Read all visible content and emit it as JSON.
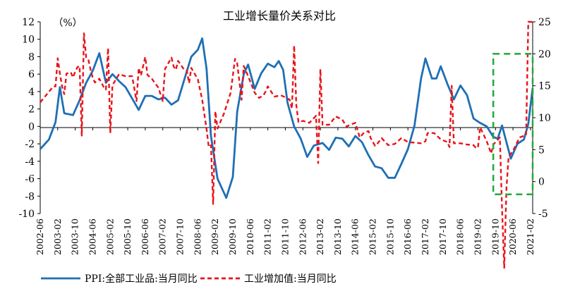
{
  "chart_data": {
    "type": "line",
    "title": "工业增长量价关系对比",
    "left_axis_unit": "（%）",
    "right_axis_unit": "",
    "y_left": {
      "min": -10,
      "max": 12,
      "ticks": [
        -10,
        -8,
        -6,
        -4,
        -2,
        0,
        2,
        4,
        6,
        8,
        10,
        12
      ]
    },
    "y_right": {
      "min": -5,
      "max": 25,
      "ticks": [
        -5,
        0,
        5,
        10,
        15,
        20,
        25
      ]
    },
    "x_tick_labels": [
      "2002-06",
      "2003-02",
      "2003-10",
      "2004-06",
      "2005-02",
      "2005-10",
      "2006-06",
      "2007-02",
      "2007-10",
      "2008-06",
      "2009-02",
      "2009-10",
      "2010-06",
      "2011-02",
      "2011-10",
      "2012-06",
      "2013-02",
      "2013-10",
      "2014-06",
      "2015-02",
      "2015-10",
      "2016-06",
      "2017-02",
      "2017-10",
      "2018-06",
      "2019-02",
      "2019-10",
      "2020-06",
      "2021-02"
    ],
    "series": [
      {
        "name": "PPI:全部工业品:当月同比",
        "axis": "left",
        "color": "#1f6fb5",
        "style": "solid",
        "points": [
          [
            "2002-06",
            -2.6
          ],
          [
            "2002-10",
            -1.5
          ],
          [
            "2003-01",
            0.5
          ],
          [
            "2003-03",
            4.5
          ],
          [
            "2003-05",
            1.5
          ],
          [
            "2003-09",
            1.3
          ],
          [
            "2003-12",
            3.0
          ],
          [
            "2004-03",
            5.0
          ],
          [
            "2004-06",
            6.4
          ],
          [
            "2004-09",
            8.4
          ],
          [
            "2004-12",
            5.0
          ],
          [
            "2005-03",
            6.0
          ],
          [
            "2005-06",
            5.2
          ],
          [
            "2005-09",
            4.5
          ],
          [
            "2005-12",
            3.2
          ],
          [
            "2006-03",
            1.9
          ],
          [
            "2006-06",
            3.5
          ],
          [
            "2006-09",
            3.5
          ],
          [
            "2006-12",
            3.1
          ],
          [
            "2007-03",
            3.3
          ],
          [
            "2007-06",
            2.5
          ],
          [
            "2007-09",
            3.0
          ],
          [
            "2007-12",
            5.5
          ],
          [
            "2008-03",
            8.0
          ],
          [
            "2008-06",
            8.8
          ],
          [
            "2008-08",
            10.1
          ],
          [
            "2008-10",
            6.6
          ],
          [
            "2008-12",
            -1.1
          ],
          [
            "2009-03",
            -6.0
          ],
          [
            "2009-07",
            -8.2
          ],
          [
            "2009-10",
            -5.8
          ],
          [
            "2009-12",
            1.7
          ],
          [
            "2010-03",
            6.0
          ],
          [
            "2010-05",
            7.1
          ],
          [
            "2010-08",
            4.3
          ],
          [
            "2010-11",
            6.1
          ],
          [
            "2011-02",
            7.2
          ],
          [
            "2011-05",
            6.8
          ],
          [
            "2011-07",
            7.5
          ],
          [
            "2011-09",
            6.5
          ],
          [
            "2011-11",
            2.7
          ],
          [
            "2012-02",
            0.0
          ],
          [
            "2012-05",
            -1.4
          ],
          [
            "2012-08",
            -3.5
          ],
          [
            "2012-11",
            -2.2
          ],
          [
            "2013-03",
            -1.9
          ],
          [
            "2013-06",
            -2.7
          ],
          [
            "2013-09",
            -1.3
          ],
          [
            "2013-12",
            -1.4
          ],
          [
            "2014-03",
            -2.3
          ],
          [
            "2014-06",
            -1.1
          ],
          [
            "2014-09",
            -1.8
          ],
          [
            "2014-12",
            -3.3
          ],
          [
            "2015-03",
            -4.6
          ],
          [
            "2015-06",
            -4.8
          ],
          [
            "2015-09",
            -5.9
          ],
          [
            "2015-12",
            -5.9
          ],
          [
            "2016-03",
            -4.3
          ],
          [
            "2016-06",
            -2.6
          ],
          [
            "2016-09",
            0.1
          ],
          [
            "2016-12",
            5.5
          ],
          [
            "2017-02",
            7.8
          ],
          [
            "2017-05",
            5.5
          ],
          [
            "2017-07",
            5.5
          ],
          [
            "2017-09",
            6.9
          ],
          [
            "2017-12",
            4.9
          ],
          [
            "2018-03",
            3.1
          ],
          [
            "2018-06",
            4.7
          ],
          [
            "2018-09",
            3.6
          ],
          [
            "2018-12",
            0.9
          ],
          [
            "2019-03",
            0.4
          ],
          [
            "2019-06",
            0.0
          ],
          [
            "2019-09",
            -1.2
          ],
          [
            "2019-11",
            -1.4
          ],
          [
            "2020-01",
            0.1
          ],
          [
            "2020-05",
            -3.7
          ],
          [
            "2020-08",
            -2.0
          ],
          [
            "2020-11",
            -1.5
          ],
          [
            "2021-01",
            0.3
          ],
          [
            "2021-03",
            4.4
          ]
        ]
      },
      {
        "name": "工业增加值:当月同比",
        "axis": "right",
        "color": "#e8141b",
        "style": "dashed",
        "points": [
          [
            "2002-06",
            12.4
          ],
          [
            "2002-12",
            14.9
          ],
          [
            "2003-01",
            14.9
          ],
          [
            "2003-02",
            19.3
          ],
          [
            "2003-03",
            16.9
          ],
          [
            "2003-04",
            14.9
          ],
          [
            "2003-05",
            13.7
          ],
          [
            "2003-06",
            16.9
          ],
          [
            "2003-08",
            17.1
          ],
          [
            "2003-09",
            16.3
          ],
          [
            "2003-10",
            17.2
          ],
          [
            "2003-11",
            17.9
          ],
          [
            "2003-12",
            18.1
          ],
          [
            "2004-01",
            7.2
          ],
          [
            "2004-02",
            23.2
          ],
          [
            "2004-03",
            19.4
          ],
          [
            "2004-04",
            19.1
          ],
          [
            "2004-05",
            17.5
          ],
          [
            "2004-06",
            16.2
          ],
          [
            "2004-07",
            15.5
          ],
          [
            "2004-09",
            16.1
          ],
          [
            "2004-11",
            14.8
          ],
          [
            "2004-12",
            14.4
          ],
          [
            "2005-01",
            20.9
          ],
          [
            "2005-02",
            7.6
          ],
          [
            "2005-03",
            15.1
          ],
          [
            "2005-06",
            16.8
          ],
          [
            "2005-09",
            16.5
          ],
          [
            "2005-12",
            16.5
          ],
          [
            "2006-02",
            12.6
          ],
          [
            "2006-03",
            17.8
          ],
          [
            "2006-04",
            16.6
          ],
          [
            "2006-06",
            19.5
          ],
          [
            "2006-07",
            16.7
          ],
          [
            "2006-09",
            16.1
          ],
          [
            "2006-12",
            14.7
          ],
          [
            "2007-02",
            12.6
          ],
          [
            "2007-03",
            17.6
          ],
          [
            "2007-06",
            19.4
          ],
          [
            "2007-07",
            18.0
          ],
          [
            "2007-08",
            17.5
          ],
          [
            "2007-09",
            18.9
          ],
          [
            "2007-12",
            17.4
          ],
          [
            "2008-01",
            17.4
          ],
          [
            "2008-02",
            15.4
          ],
          [
            "2008-03",
            17.8
          ],
          [
            "2008-06",
            16.0
          ],
          [
            "2008-08",
            12.8
          ],
          [
            "2008-10",
            8.2
          ],
          [
            "2008-11",
            5.4
          ],
          [
            "2008-12",
            5.7
          ],
          [
            "2009-01",
            -3.5
          ],
          [
            "2009-02",
            11.0
          ],
          [
            "2009-03",
            8.3
          ],
          [
            "2009-06",
            10.7
          ],
          [
            "2009-09",
            13.9
          ],
          [
            "2009-11",
            19.2
          ],
          [
            "2009-12",
            18.5
          ],
          [
            "2010-02",
            12.8
          ],
          [
            "2010-03",
            18.1
          ],
          [
            "2010-05",
            16.5
          ],
          [
            "2010-08",
            13.9
          ],
          [
            "2010-10",
            13.1
          ],
          [
            "2010-12",
            13.5
          ],
          [
            "2011-01",
            14.1
          ],
          [
            "2011-02",
            14.9
          ],
          [
            "2011-05",
            13.3
          ],
          [
            "2011-08",
            13.5
          ],
          [
            "2011-10",
            13.2
          ],
          [
            "2011-12",
            12.8
          ],
          [
            "2012-01",
            11.4
          ],
          [
            "2012-02",
            21.3
          ],
          [
            "2012-03",
            11.9
          ],
          [
            "2012-04",
            9.3
          ],
          [
            "2012-06",
            9.5
          ],
          [
            "2012-09",
            9.2
          ],
          [
            "2012-12",
            10.3
          ],
          [
            "2013-01",
            2.9
          ],
          [
            "2013-02",
            17.6
          ],
          [
            "2013-03",
            8.9
          ],
          [
            "2013-06",
            8.9
          ],
          [
            "2013-09",
            10.2
          ],
          [
            "2013-12",
            9.7
          ],
          [
            "2014-02",
            8.6
          ],
          [
            "2014-03",
            8.8
          ],
          [
            "2014-06",
            9.2
          ],
          [
            "2014-08",
            6.9
          ],
          [
            "2014-10",
            7.7
          ],
          [
            "2014-12",
            7.9
          ],
          [
            "2015-01",
            6.8
          ],
          [
            "2015-03",
            5.6
          ],
          [
            "2015-04",
            5.9
          ],
          [
            "2015-06",
            6.8
          ],
          [
            "2015-09",
            5.7
          ],
          [
            "2015-12",
            5.9
          ],
          [
            "2016-03",
            6.8
          ],
          [
            "2016-06",
            6.2
          ],
          [
            "2016-09",
            6.1
          ],
          [
            "2016-12",
            6.0
          ],
          [
            "2017-02",
            6.3
          ],
          [
            "2017-03",
            7.6
          ],
          [
            "2017-06",
            7.6
          ],
          [
            "2017-09",
            6.6
          ],
          [
            "2017-12",
            6.2
          ],
          [
            "2018-01",
            5.4
          ],
          [
            "2018-02",
            15.0
          ],
          [
            "2018-03",
            6.0
          ],
          [
            "2018-06",
            6.0
          ],
          [
            "2018-09",
            5.8
          ],
          [
            "2018-12",
            5.7
          ],
          [
            "2019-01",
            5.3
          ],
          [
            "2019-02",
            5.3
          ],
          [
            "2019-03",
            8.5
          ],
          [
            "2019-06",
            6.3
          ],
          [
            "2019-08",
            4.4
          ],
          [
            "2019-09",
            5.8
          ],
          [
            "2019-12",
            6.9
          ],
          [
            "2020-01",
            -4.3
          ],
          [
            "2020-02",
            -13.5
          ],
          [
            "2020-03",
            -1.1
          ],
          [
            "2020-04",
            3.9
          ],
          [
            "2020-06",
            4.8
          ],
          [
            "2020-09",
            6.9
          ],
          [
            "2020-12",
            7.3
          ],
          [
            "2021-01",
            25.0
          ],
          [
            "2021-03",
            25.0
          ]
        ]
      }
    ],
    "highlight_box": {
      "x_start": "2019-09",
      "x_end": "2021-03",
      "y_right_top": 20,
      "y_right_bottom": -2
    },
    "legend": {
      "placement": "bottom"
    },
    "grid": false
  }
}
